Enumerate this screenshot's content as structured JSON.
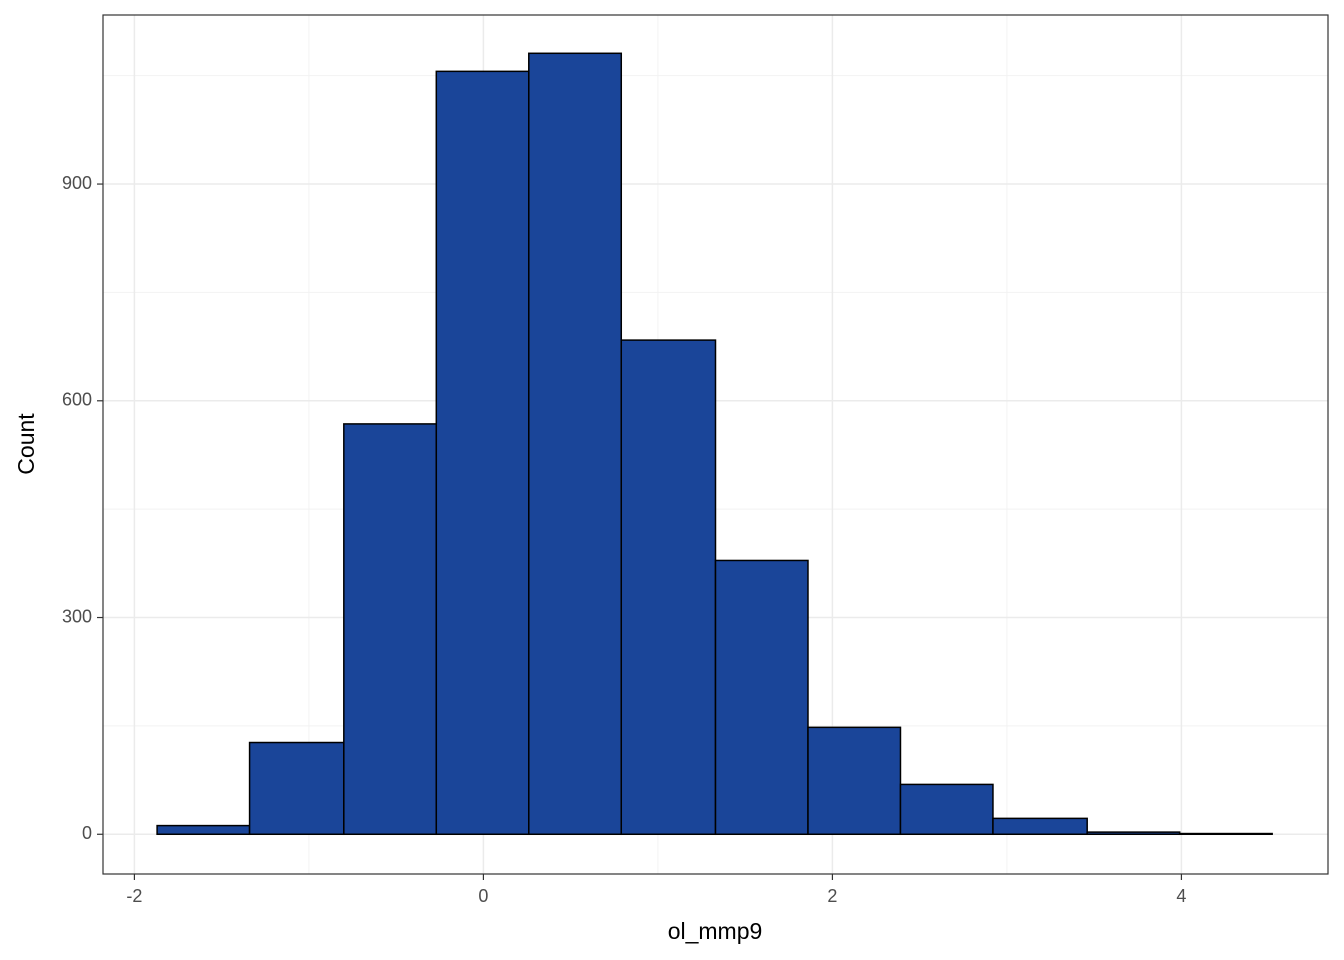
{
  "chart_data": {
    "type": "histogram",
    "x_label": "ol_mmp9",
    "y_label": "Count",
    "bins": [
      -1.87,
      -1.34,
      -0.8,
      -0.27,
      0.26,
      0.79,
      1.33,
      1.86,
      2.39,
      2.92,
      3.46,
      3.99,
      4.52
    ],
    "values": [
      12,
      127,
      568,
      1056,
      1081,
      684,
      379,
      148,
      69,
      22,
      3,
      1
    ],
    "color": "#1a4599",
    "edge_color": "#000000",
    "xlim": [
      -2.18,
      4.84
    ],
    "ylim": [
      -55,
      1134
    ],
    "xticks": [
      -2,
      0,
      2,
      4
    ],
    "yticks": [
      0,
      300,
      600,
      900
    ],
    "grid": true
  }
}
